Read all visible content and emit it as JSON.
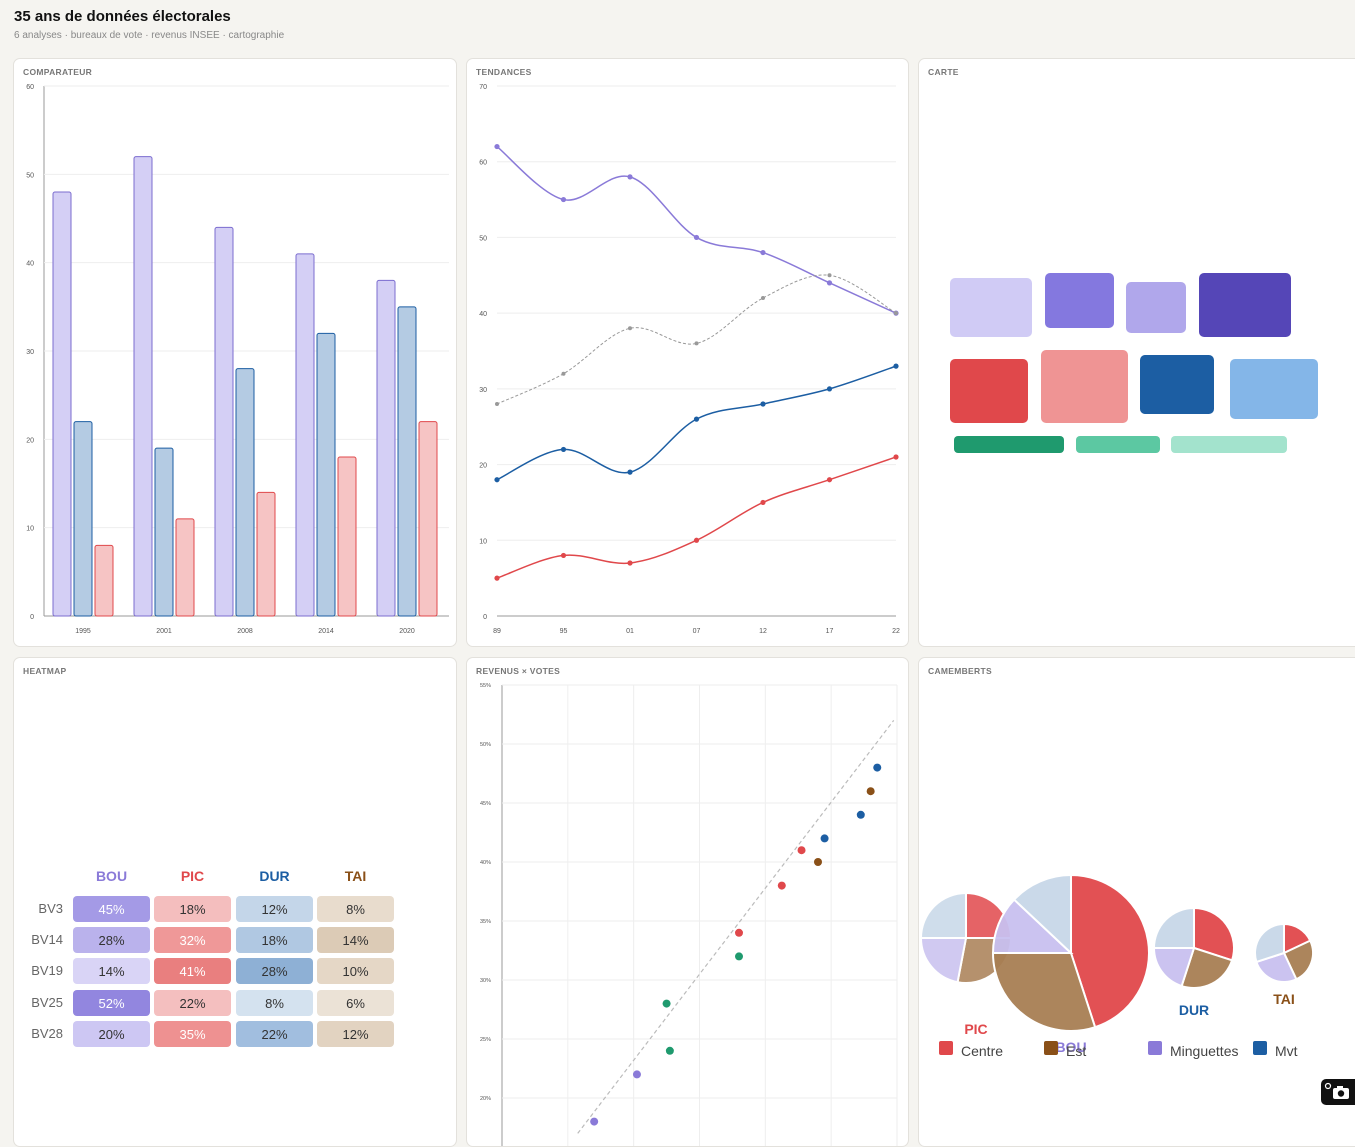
{
  "header": {
    "title": "35 ans de données électorales",
    "subtitle": "6 analyses · bureaux de vote · revenus INSEE · cartographie"
  },
  "panels": {
    "comparateur": "COMPARATEUR",
    "tendances": "TENDANCES",
    "carte": "CARTE",
    "heatmap": "HEATMAP",
    "revenus": "REVENUS × VOTES",
    "camemberts": "CAMEMBERTS"
  },
  "colors": {
    "bou": "#8a7ad8",
    "pic": "#e0484b",
    "dur": "#1c5ea3",
    "tai": "#8a5018",
    "green": "#1f9a6e",
    "trend_dash": "#999999"
  },
  "chart_data": [
    {
      "id": "comparateur",
      "type": "bar",
      "categories": [
        "1995",
        "2001",
        "2008",
        "2014",
        "2020"
      ],
      "series": [
        {
          "values": [
            48,
            52,
            44,
            41,
            38
          ]
        },
        {
          "values": [
            22,
            19,
            28,
            32,
            35
          ]
        },
        {
          "values": [
            8,
            11,
            14,
            18,
            22
          ]
        }
      ],
      "yticks": [
        "0",
        "10",
        "20",
        "30",
        "40",
        "50",
        "60"
      ],
      "ylim": [
        0,
        60
      ],
      "grid": true
    },
    {
      "id": "tendances",
      "type": "line",
      "x": [
        "89",
        "95",
        "01",
        "07",
        "12",
        "17",
        "22"
      ],
      "series": [
        {
          "values": [
            62,
            55,
            58,
            50,
            48,
            44,
            40
          ]
        },
        {
          "values": [
            28,
            32,
            38,
            36,
            42,
            45,
            40
          ],
          "style": "dashed"
        },
        {
          "values": [
            18,
            22,
            19,
            26,
            28,
            30,
            33
          ]
        },
        {
          "values": [
            5,
            8,
            7,
            10,
            15,
            18,
            21
          ]
        }
      ],
      "yticks": [
        "0",
        "10",
        "20",
        "30",
        "40",
        "50",
        "60",
        "70"
      ],
      "ylim": [
        0,
        70
      ],
      "grid": true
    },
    {
      "id": "heatmap",
      "type": "heatmap",
      "columns": [
        "BOU",
        "PIC",
        "DUR",
        "TAI"
      ],
      "rows": [
        "BV3",
        "BV14",
        "BV19",
        "BV25",
        "BV28"
      ],
      "values": [
        [
          "45%",
          "18%",
          "12%",
          "8%"
        ],
        [
          "28%",
          "32%",
          "18%",
          "14%"
        ],
        [
          "14%",
          "41%",
          "28%",
          "10%"
        ],
        [
          "52%",
          "22%",
          "8%",
          "6%"
        ],
        [
          "20%",
          "35%",
          "22%",
          "12%"
        ]
      ]
    },
    {
      "id": "revenus",
      "type": "scatter",
      "yticks": [
        "20%",
        "25%",
        "30%",
        "35%",
        "40%",
        "45%",
        "50%",
        "55%"
      ],
      "ylim": [
        18,
        55
      ],
      "xlim": [
        0,
        6
      ],
      "points": [
        {
          "x": 1.4,
          "y": 18,
          "party": "bou"
        },
        {
          "x": 2.05,
          "y": 22,
          "party": "bou"
        },
        {
          "x": 2.5,
          "y": 28,
          "party": "green"
        },
        {
          "x": 2.55,
          "y": 24,
          "party": "green"
        },
        {
          "x": 3.6,
          "y": 32,
          "party": "green"
        },
        {
          "x": 3.6,
          "y": 34,
          "party": "pic"
        },
        {
          "x": 4.25,
          "y": 38,
          "party": "pic"
        },
        {
          "x": 4.55,
          "y": 41,
          "party": "pic"
        },
        {
          "x": 4.8,
          "y": 40,
          "party": "tai"
        },
        {
          "x": 4.9,
          "y": 42,
          "party": "dur"
        },
        {
          "x": 5.45,
          "y": 44,
          "party": "dur"
        },
        {
          "x": 5.6,
          "y": 46,
          "party": "tai"
        },
        {
          "x": 5.7,
          "y": 48,
          "party": "dur"
        }
      ],
      "trendline": [
        [
          1.15,
          17
        ],
        [
          5.95,
          52
        ]
      ],
      "grid": true
    },
    {
      "id": "camemberts",
      "type": "pie",
      "pies": [
        {
          "label": "PIC",
          "slices": [
            {
              "value": 25,
              "color": "#e0484b"
            },
            {
              "value": 28,
              "color": "#a87e53"
            },
            {
              "value": 22,
              "color": "#c8c0ef"
            },
            {
              "value": 25,
              "color": "#c7d7e8"
            }
          ]
        },
        {
          "label": "BOU",
          "slices": [
            {
              "value": 45,
              "color": "#e0484b"
            },
            {
              "value": 30,
              "color": "#a87e53"
            },
            {
              "value": 12,
              "color": "#c8c0ef"
            },
            {
              "value": 13,
              "color": "#c7d7e8"
            }
          ]
        },
        {
          "label": "DUR",
          "slices": [
            {
              "value": 30,
              "color": "#e0484b"
            },
            {
              "value": 25,
              "color": "#a87e53"
            },
            {
              "value": 20,
              "color": "#c8c0ef"
            },
            {
              "value": 25,
              "color": "#c7d7e8"
            }
          ]
        },
        {
          "label": "TAI",
          "slices": [
            {
              "value": 18,
              "color": "#e0484b"
            },
            {
              "value": 25,
              "color": "#a87e53"
            },
            {
              "value": 27,
              "color": "#c8c0ef"
            },
            {
              "value": 30,
              "color": "#c7d7e8"
            }
          ]
        }
      ],
      "legend": [
        {
          "label": "Centre",
          "color": "#e0484b"
        },
        {
          "label": "Est",
          "color": "#8a5018"
        },
        {
          "label": "Minguettes",
          "color": "#8a7ad8"
        },
        {
          "label": "Mvt",
          "color": "#1c5ea3"
        }
      ]
    }
  ]
}
